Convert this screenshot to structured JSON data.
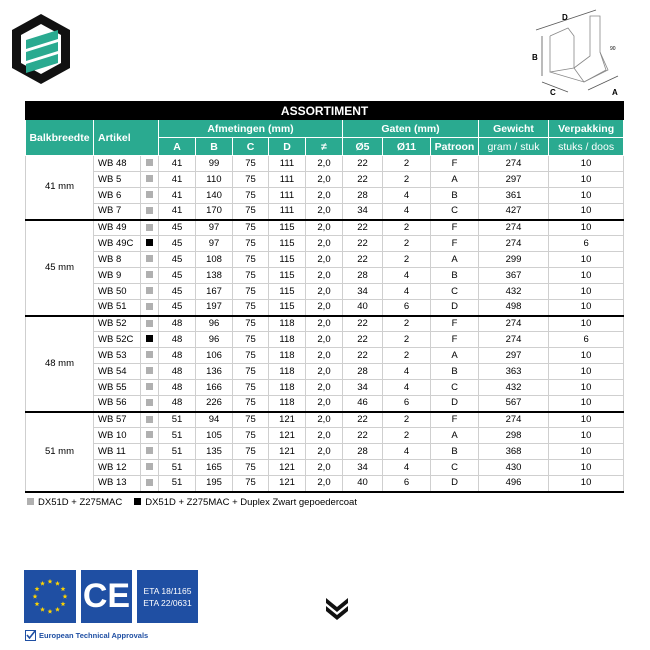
{
  "title": "ASSORTIMENT",
  "headers": {
    "balkbreedte": "Balkbreedte",
    "artikel": "Artikel",
    "afmetingen": "Afmetingen (mm)",
    "A": "A",
    "B": "B",
    "C": "C",
    "D": "D",
    "thickness": "≠",
    "gaten": "Gaten (mm)",
    "o5": "Ø5",
    "o11": "Ø11",
    "patroon": "Patroon",
    "gewicht": "Gewicht",
    "gewicht_unit": "gram / stuk",
    "verpakking": "Verpakking",
    "verpakking_unit": "stuks / doos"
  },
  "groups": [
    {
      "label": "41 mm",
      "rows": [
        [
          "WB 48",
          "grey",
          41,
          99,
          75,
          111,
          "2,0",
          22,
          2,
          "F",
          274,
          10
        ],
        [
          "WB 5",
          "grey",
          41,
          110,
          75,
          111,
          "2,0",
          22,
          2,
          "A",
          297,
          10
        ],
        [
          "WB 6",
          "grey",
          41,
          140,
          75,
          111,
          "2,0",
          28,
          4,
          "B",
          361,
          10
        ],
        [
          "WB 7",
          "grey",
          41,
          170,
          75,
          111,
          "2,0",
          34,
          4,
          "C",
          427,
          10
        ]
      ]
    },
    {
      "label": "45 mm",
      "rows": [
        [
          "WB 49",
          "grey",
          45,
          97,
          75,
          115,
          "2,0",
          22,
          2,
          "F",
          274,
          10
        ],
        [
          "WB 49C",
          "black",
          45,
          97,
          75,
          115,
          "2,0",
          22,
          2,
          "F",
          274,
          6
        ],
        [
          "WB 8",
          "grey",
          45,
          108,
          75,
          115,
          "2,0",
          22,
          2,
          "A",
          299,
          10
        ],
        [
          "WB 9",
          "grey",
          45,
          138,
          75,
          115,
          "2,0",
          28,
          4,
          "B",
          367,
          10
        ],
        [
          "WB 50",
          "grey",
          45,
          167,
          75,
          115,
          "2,0",
          34,
          4,
          "C",
          432,
          10
        ],
        [
          "WB 51",
          "grey",
          45,
          197,
          75,
          115,
          "2,0",
          40,
          6,
          "D",
          498,
          10
        ]
      ]
    },
    {
      "label": "48 mm",
      "rows": [
        [
          "WB 52",
          "grey",
          48,
          96,
          75,
          118,
          "2,0",
          22,
          2,
          "F",
          274,
          10
        ],
        [
          "WB 52C",
          "black",
          48,
          96,
          75,
          118,
          "2,0",
          22,
          2,
          "F",
          274,
          6
        ],
        [
          "WB 53",
          "grey",
          48,
          106,
          75,
          118,
          "2,0",
          22,
          2,
          "A",
          297,
          10
        ],
        [
          "WB 54",
          "grey",
          48,
          136,
          75,
          118,
          "2,0",
          28,
          4,
          "B",
          363,
          10
        ],
        [
          "WB 55",
          "grey",
          48,
          166,
          75,
          118,
          "2,0",
          34,
          4,
          "C",
          432,
          10
        ],
        [
          "WB 56",
          "grey",
          48,
          226,
          75,
          118,
          "2,0",
          46,
          6,
          "D",
          567,
          10
        ]
      ]
    },
    {
      "label": "51 mm",
      "rows": [
        [
          "WB 57",
          "grey",
          51,
          94,
          75,
          121,
          "2,0",
          22,
          2,
          "F",
          274,
          10
        ],
        [
          "WB 10",
          "grey",
          51,
          105,
          75,
          121,
          "2,0",
          22,
          2,
          "A",
          298,
          10
        ],
        [
          "WB 11",
          "grey",
          51,
          135,
          75,
          121,
          "2,0",
          28,
          4,
          "B",
          368,
          10
        ],
        [
          "WB 12",
          "grey",
          51,
          165,
          75,
          121,
          "2,0",
          34,
          4,
          "C",
          430,
          10
        ],
        [
          "WB 13",
          "grey",
          51,
          195,
          75,
          121,
          "2,0",
          40,
          6,
          "D",
          496,
          10
        ]
      ]
    }
  ],
  "legend": [
    {
      "swatch": "grey",
      "label": "DX51D + Z275MAC"
    },
    {
      "swatch": "black",
      "label": "DX51D + Z275MAC + Duplex Zwart gepoedercoat"
    }
  ],
  "diagram_labels": {
    "D": "D",
    "B": "B",
    "C": "C",
    "A": "A",
    "angle": "90"
  },
  "certs": {
    "ce": "CE",
    "eta": [
      "ETA 18/1165",
      "ETA 22/0631"
    ],
    "approvals": "European Technical Approvals"
  },
  "colors": {
    "teal": "#2aaa90",
    "blue": "#1f4fa3",
    "grey_swatch": "#b0b0b0"
  }
}
